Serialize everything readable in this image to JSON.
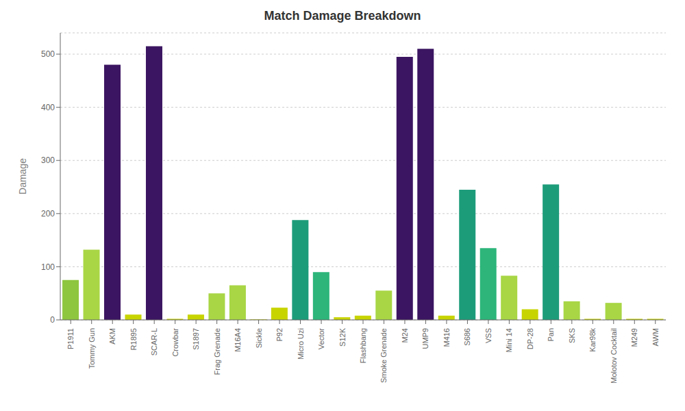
{
  "chart_data": {
    "type": "bar",
    "title": "Match Damage Breakdown",
    "ylabel": "Damage",
    "categories": [
      "P1911",
      "Tommy Gun",
      "AKM",
      "R1895",
      "SCAR-L",
      "Crowbar",
      "S1897",
      "Frag Grenade",
      "M16A4",
      "Sickle",
      "P92",
      "Micro Uzi",
      "Vector",
      "S12K",
      "Flashbang",
      "Smoke Grenade",
      "M24",
      "UMP9",
      "M416",
      "S686",
      "VSS",
      "Mini 14",
      "DP-28",
      "Pan",
      "SKS",
      "Kar98k",
      "Molotov Cocktail",
      "M249",
      "AWM"
    ],
    "values": [
      75,
      132,
      480,
      10,
      515,
      2,
      10,
      50,
      65,
      1,
      23,
      188,
      90,
      5,
      8,
      55,
      495,
      510,
      8,
      245,
      135,
      83,
      20,
      255,
      35,
      2,
      32,
      2,
      2
    ],
    "colors": [
      "#8ec63f",
      "#a8d645",
      "#3b1561",
      "#c8d400",
      "#3b1561",
      "#c8d400",
      "#c8d400",
      "#a8d645",
      "#a8d645",
      "#c8d400",
      "#c8d400",
      "#1d9c7a",
      "#2db57a",
      "#c8d400",
      "#c8d400",
      "#a8d645",
      "#3b1561",
      "#3b1561",
      "#c8d400",
      "#1d9c7a",
      "#2db57a",
      "#a8d645",
      "#c8d400",
      "#1d9c7a",
      "#a8d645",
      "#c8d400",
      "#a8d645",
      "#c8d400",
      "#c8d400"
    ],
    "ylim": [
      0,
      540
    ],
    "yticks": [
      0,
      100,
      200,
      300,
      400,
      500
    ],
    "grid": true
  }
}
